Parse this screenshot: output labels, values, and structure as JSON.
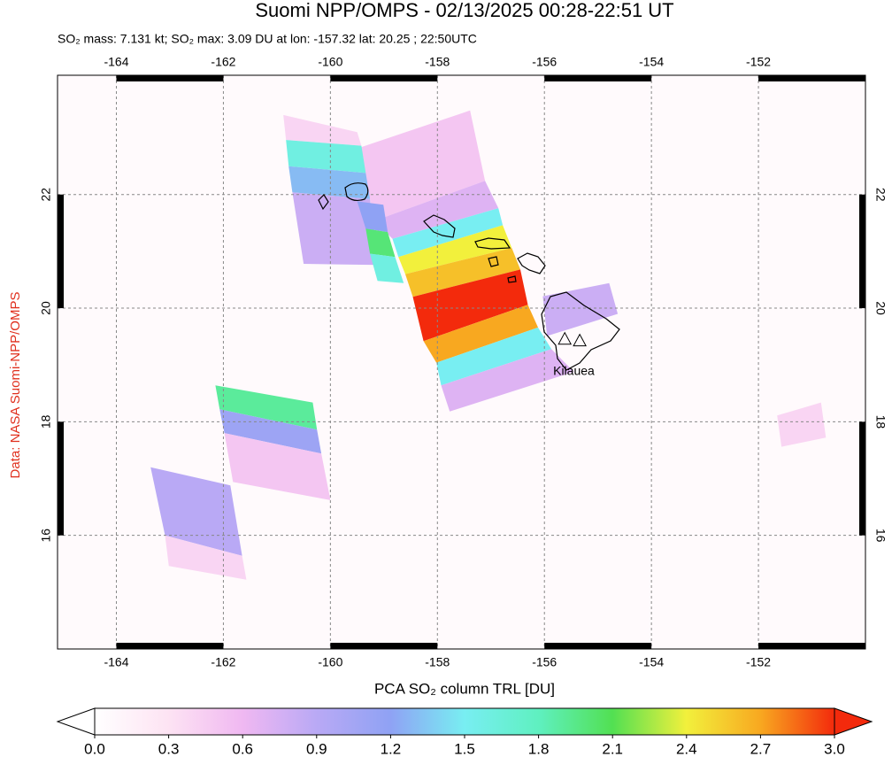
{
  "title": "Suomi NPP/OMPS - 02/13/2025 00:28-22:51 UT",
  "subtitle": "SO₂ mass: 7.131 kt; SO₂ max: 3.09 DU at lon: -157.32 lat: 20.25 ; 22:50UTC",
  "side_note": "Data: NASA Suomi-NPP/OMPS",
  "map": {
    "xlim": [
      -165.1,
      -150.0
    ],
    "ylim": [
      14.0,
      24.1
    ],
    "xticks": [
      -164,
      -162,
      -160,
      -158,
      -156,
      -154,
      -152
    ],
    "yticks": [
      16,
      18,
      20,
      22
    ],
    "grid": true,
    "annotations": [
      {
        "text": "Kilauea",
        "lon": -155.45,
        "lat": 18.88
      }
    ],
    "volcanoes": [
      {
        "lon": -155.62,
        "lat": 19.46
      },
      {
        "lon": -155.34,
        "lat": 19.43
      }
    ],
    "cells": [
      {
        "value": 0.5,
        "lon": [
          -159.47,
          -157.39,
          -157.11,
          -159.17
        ],
        "lat": [
          22.82,
          23.48,
          22.24,
          21.54
        ]
      },
      {
        "value": 0.7,
        "lon": [
          -159.17,
          -157.11,
          -156.86,
          -158.84
        ],
        "lat": [
          21.54,
          22.24,
          21.76,
          21.22
        ]
      },
      {
        "value": 1.5,
        "lon": [
          -158.84,
          -156.86,
          -156.78,
          -158.73
        ],
        "lat": [
          21.22,
          21.76,
          21.46,
          20.9
        ]
      },
      {
        "value": 2.4,
        "lon": [
          -158.73,
          -156.78,
          -156.61,
          -158.6
        ],
        "lat": [
          20.9,
          21.46,
          21.06,
          20.6
        ]
      },
      {
        "value": 2.6,
        "lon": [
          -158.6,
          -156.61,
          -156.45,
          -158.46
        ],
        "lat": [
          20.6,
          21.06,
          20.68,
          20.2
        ]
      },
      {
        "value": 3.0,
        "lon": [
          -158.46,
          -156.45,
          -156.31,
          -158.26
        ],
        "lat": [
          20.2,
          20.68,
          20.06,
          19.42
        ]
      },
      {
        "value": 2.7,
        "lon": [
          -158.26,
          -156.31,
          -156.12,
          -158.02
        ],
        "lat": [
          19.42,
          20.06,
          19.66,
          19.04
        ]
      },
      {
        "value": 1.5,
        "lon": [
          -158.02,
          -156.12,
          -155.87,
          -157.93
        ],
        "lat": [
          19.04,
          19.66,
          19.28,
          18.64
        ]
      },
      {
        "value": 0.7,
        "lon": [
          -157.93,
          -155.87,
          -155.45,
          -157.77
        ],
        "lat": [
          18.64,
          19.28,
          18.88,
          18.18
        ]
      },
      {
        "value": 0.4,
        "lon": [
          -160.88,
          -159.5,
          -159.42,
          -160.83
        ],
        "lat": [
          23.4,
          23.1,
          22.86,
          22.96
        ]
      },
      {
        "value": 1.6,
        "lon": [
          -160.83,
          -159.42,
          -159.34,
          -160.78
        ],
        "lat": [
          22.96,
          22.86,
          22.38,
          22.5
        ]
      },
      {
        "value": 1.3,
        "lon": [
          -160.78,
          -159.34,
          -159.26,
          -160.71
        ],
        "lat": [
          22.5,
          22.38,
          21.92,
          22.04
        ]
      },
      {
        "value": 0.8,
        "lon": [
          -160.71,
          -159.26,
          -159.09,
          -160.5
        ],
        "lat": [
          22.04,
          21.92,
          20.76,
          20.78
        ]
      },
      {
        "value": 1.2,
        "lon": [
          -159.5,
          -159.01,
          -158.93,
          -159.34
        ],
        "lat": [
          21.88,
          21.82,
          21.34,
          21.4
        ]
      },
      {
        "value": 2.0,
        "lon": [
          -159.34,
          -158.93,
          -158.79,
          -159.26
        ],
        "lat": [
          21.4,
          21.34,
          20.9,
          20.96
        ]
      },
      {
        "value": 1.6,
        "lon": [
          -159.26,
          -158.79,
          -158.63,
          -159.12
        ],
        "lat": [
          20.96,
          20.9,
          20.44,
          20.48
        ]
      },
      {
        "value": 1.9,
        "lon": [
          -162.15,
          -160.33,
          -160.25,
          -162.07
        ],
        "lat": [
          18.64,
          18.34,
          17.86,
          18.22
        ]
      },
      {
        "value": 1.1,
        "lon": [
          -162.07,
          -160.25,
          -160.17,
          -161.98
        ],
        "lat": [
          18.22,
          17.86,
          17.44,
          17.8
        ]
      },
      {
        "value": 0.5,
        "lon": [
          -161.98,
          -160.17,
          -160.0,
          -161.82
        ],
        "lat": [
          17.8,
          17.44,
          16.62,
          16.94
        ]
      },
      {
        "value": 0.9,
        "lon": [
          -163.36,
          -161.87,
          -161.65,
          -163.09
        ],
        "lat": [
          17.2,
          16.88,
          15.64,
          16.0
        ]
      },
      {
        "value": 0.4,
        "lon": [
          -163.09,
          -161.65,
          -161.57,
          -163.02
        ],
        "lat": [
          16.0,
          15.64,
          15.22,
          15.46
        ]
      },
      {
        "value": 0.8,
        "lon": [
          -156.03,
          -154.79,
          -154.63,
          -155.95
        ],
        "lat": [
          20.21,
          20.44,
          19.9,
          19.51
        ]
      },
      {
        "value": 0.4,
        "lon": [
          -151.65,
          -150.83,
          -150.74,
          -151.57
        ],
        "lat": [
          18.11,
          18.34,
          17.72,
          17.56
        ]
      }
    ]
  },
  "colorbar": {
    "label": "PCA SO₂ column TRL [DU]",
    "lim": [
      0,
      3
    ],
    "colors": [
      "#ffffff",
      "#fde3f3",
      "#f0b8f2",
      "#b9a9f5",
      "#8fa2f4",
      "#78eef2",
      "#5ff0c0",
      "#52e052",
      "#f2f03c",
      "#f8a820",
      "#f32a0c"
    ],
    "ticks": [
      {
        "value": 0,
        "label": "0.0"
      },
      {
        "value": 0.3,
        "label": "0.3"
      },
      {
        "value": 0.6,
        "label": "0.6"
      },
      {
        "value": 0.9,
        "label": "0.9"
      },
      {
        "value": 1.2,
        "label": "1.2"
      },
      {
        "value": 1.5,
        "label": "1.5"
      },
      {
        "value": 1.8,
        "label": "1.8"
      },
      {
        "value": 2.1,
        "label": "2.1"
      },
      {
        "value": 2.4,
        "label": "2.4"
      },
      {
        "value": 2.7,
        "label": "2.7"
      },
      {
        "value": 3,
        "label": "3.0"
      }
    ]
  }
}
